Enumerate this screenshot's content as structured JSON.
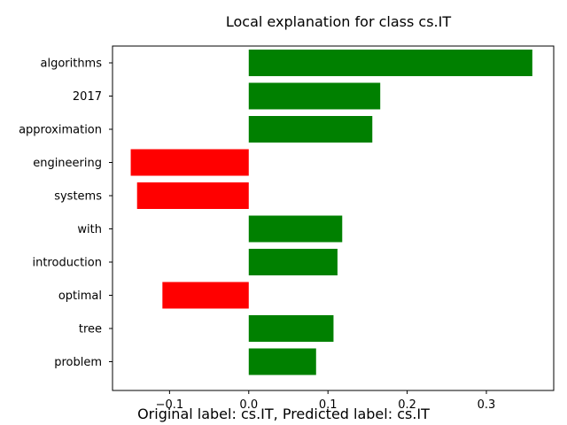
{
  "chart_data": {
    "type": "bar",
    "orientation": "horizontal",
    "title": "Local explanation for class cs.IT",
    "categories": [
      "algorithms",
      "2017",
      "approximation",
      "engineering",
      "systems",
      "with",
      "introduction",
      "optimal",
      "tree",
      "problem"
    ],
    "values": [
      0.358,
      0.166,
      0.156,
      -0.149,
      -0.141,
      0.118,
      0.112,
      -0.109,
      0.107,
      0.085
    ],
    "xlim": [
      -0.172,
      0.385
    ],
    "xticks": [
      -0.1,
      0.0,
      0.1,
      0.2,
      0.3
    ],
    "xtick_labels": [
      "−0.1",
      "0.0",
      "0.1",
      "0.2",
      "0.3"
    ],
    "positive_color": "#008000",
    "negative_color": "#ff0000",
    "xlabel": "",
    "ylabel": "",
    "grid": false
  },
  "caption": "Original label: cs.IT, Predicted label: cs.IT"
}
